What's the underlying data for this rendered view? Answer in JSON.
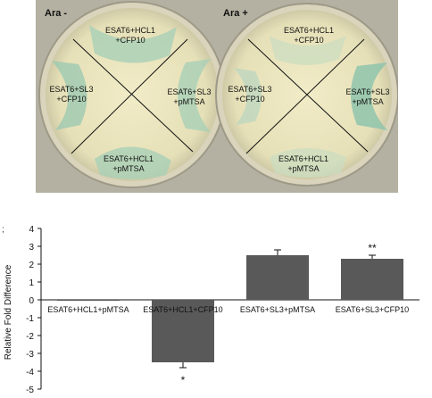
{
  "photo": {
    "plates": [
      {
        "label": "Ara -",
        "quadrants": [
          {
            "line1": "ESAT6+HCL1",
            "line2": "+CFP10"
          },
          {
            "line1": "ESAT6+SL3",
            "line2": "+pMTSA"
          },
          {
            "line1": "ESAT6+HCL1",
            "line2": "+pMTSA"
          },
          {
            "line1": "ESAT6+SL3",
            "line2": "+CFP10"
          }
        ]
      },
      {
        "label": "Ara +",
        "quadrants": [
          {
            "line1": "ESAT6+HCL1",
            "line2": "+CFP10"
          },
          {
            "line1": "ESAT6+SL3",
            "line2": "+pMTSA"
          },
          {
            "line1": "ESAT6+HCL1",
            "line2": "+pMTSA"
          },
          {
            "line1": "ESAT6+SL3",
            "line2": "+CFP10"
          }
        ]
      }
    ]
  },
  "figure_mark": ";",
  "chart_data": {
    "type": "bar",
    "categories": [
      "ESAT6+HCL1+pMTSA",
      "ESAT6+HCL1+CFP10",
      "ESAT6+SL3+pMTSA",
      "ESAT6+SL3+CFP10"
    ],
    "values": [
      0,
      -3.5,
      2.5,
      2.3
    ],
    "errors": [
      0,
      0.3,
      0.3,
      0.2
    ],
    "significance": [
      "",
      "*",
      "",
      "**"
    ],
    "ylabel": "Relative Fold Difference",
    "ylim": [
      -5,
      4
    ],
    "yticks": [
      4,
      3,
      2,
      1,
      0,
      -1,
      -2,
      -3,
      -4,
      -5
    ],
    "bar_color": "#595959"
  }
}
